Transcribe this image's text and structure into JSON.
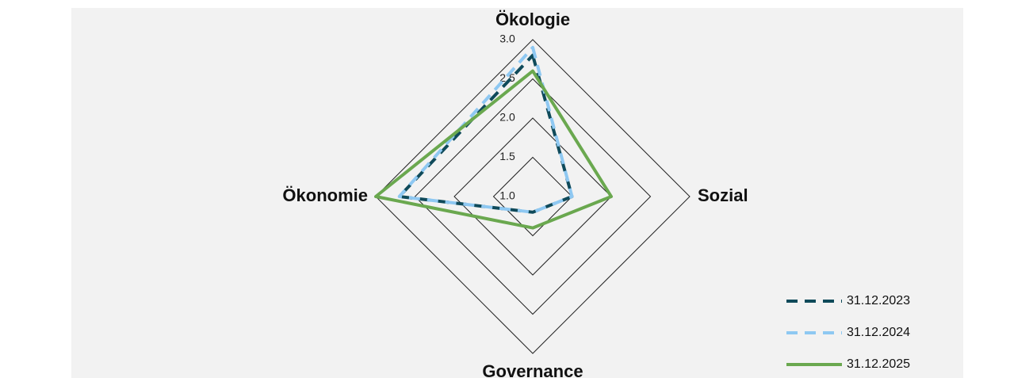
{
  "chart_data": {
    "type": "radar",
    "categories": [
      "Ökologie",
      "Sozial",
      "Governance",
      "Ökonomie"
    ],
    "series": [
      {
        "name": "31.12.2023",
        "color": "#0f4a5a",
        "dashed": true,
        "values": [
          2.8,
          1.5,
          1.2,
          2.7
        ]
      },
      {
        "name": "31.12.2024",
        "color": "#8ec8f2",
        "dashed": true,
        "values": [
          2.9,
          1.5,
          1.2,
          2.7
        ]
      },
      {
        "name": "31.12.2025",
        "color": "#6aa84f",
        "dashed": false,
        "values": [
          2.6,
          2.0,
          1.4,
          3.0
        ]
      }
    ],
    "rlim": [
      1,
      3
    ],
    "rticks": [
      {
        "value": 1,
        "label": "1.0"
      },
      1.5,
      {
        "value": 2,
        "label": "2.0"
      },
      2.5,
      {
        "value": 3,
        "label": "3.0"
      }
    ],
    "legend": "bottom-right"
  }
}
